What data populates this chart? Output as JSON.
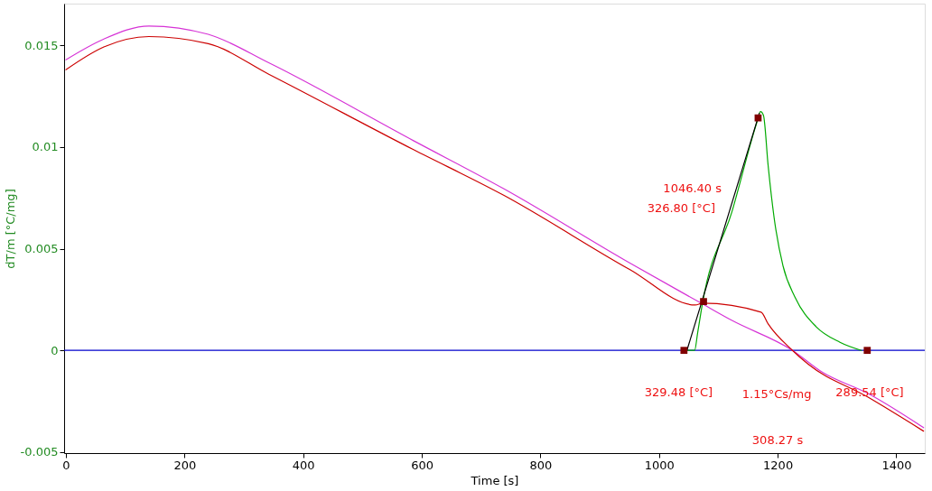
{
  "chart_data": {
    "type": "line",
    "xlabel": "Time [s]",
    "ylabel": "dT/m  [°C/mg]",
    "xlim": [
      -3,
      1448
    ],
    "ylim": [
      -0.00505,
      0.01705
    ],
    "xticks": [
      0,
      200,
      400,
      600,
      800,
      1000,
      1200,
      1400
    ],
    "yticks": [
      -0.005,
      0,
      0.005,
      0.01,
      0.015
    ],
    "grid": false,
    "line_style": "solid",
    "series": [
      {
        "color": "#d633d6",
        "x": [
          0,
          64,
          140,
          240,
          342,
          586,
          738,
          951,
          1068,
          1123,
          1225,
          1275,
          1351,
          1446
        ],
        "values": [
          0.01429,
          0.01531,
          0.01595,
          0.01554,
          0.01414,
          0.01031,
          0.00795,
          0.00429,
          0.00237,
          0.00147,
          0.0,
          -0.00107,
          -0.0021,
          -0.0038
        ]
      },
      {
        "color": "#cc0000",
        "x": [
          0,
          64,
          140,
          240,
          342,
          586,
          738,
          951,
          1061,
          1073,
          1172,
          1184,
          1225,
          1251,
          1351,
          1446
        ],
        "values": [
          0.0138,
          0.01492,
          0.01543,
          0.01508,
          0.01358,
          0.00987,
          0.00763,
          0.00397,
          0.00223,
          0.00232,
          0.00188,
          0.0013,
          0.0,
          -0.00067,
          -0.00228,
          -0.00397
        ]
      },
      {
        "color": "#00aa00",
        "x": [
          1047,
          1060,
          1065,
          1073,
          1123,
          1164,
          1171,
          1176,
          1184,
          1194,
          1209,
          1229,
          1265,
          1305,
          1341
        ],
        "values": [
          0,
          0,
          0.00085,
          0.00228,
          0.00683,
          0.01112,
          0.01174,
          0.01156,
          0.00906,
          0.00652,
          0.00415,
          0.00263,
          0.00116,
          0.0004,
          0.0
        ]
      },
      {
        "color": "#000000",
        "x": [
          1047,
          1169
        ],
        "values": [
          0,
          0.01165
        ]
      },
      {
        "type": "scatter",
        "marker": "square",
        "color": "#800000",
        "x": [
          1042,
          1075,
          1167,
          1351
        ],
        "values": [
          0,
          0.0024,
          0.01143,
          0
        ]
      }
    ],
    "ref_lines": [
      {
        "axis": "y",
        "value": 0,
        "color": "#0000cc"
      }
    ],
    "annotations": [
      "1046.40 s",
      "326.80 [°C]",
      "329.48 [°C]",
      "1.15°Cs/mg",
      "289.54 [°C]",
      "308.27 s"
    ]
  }
}
